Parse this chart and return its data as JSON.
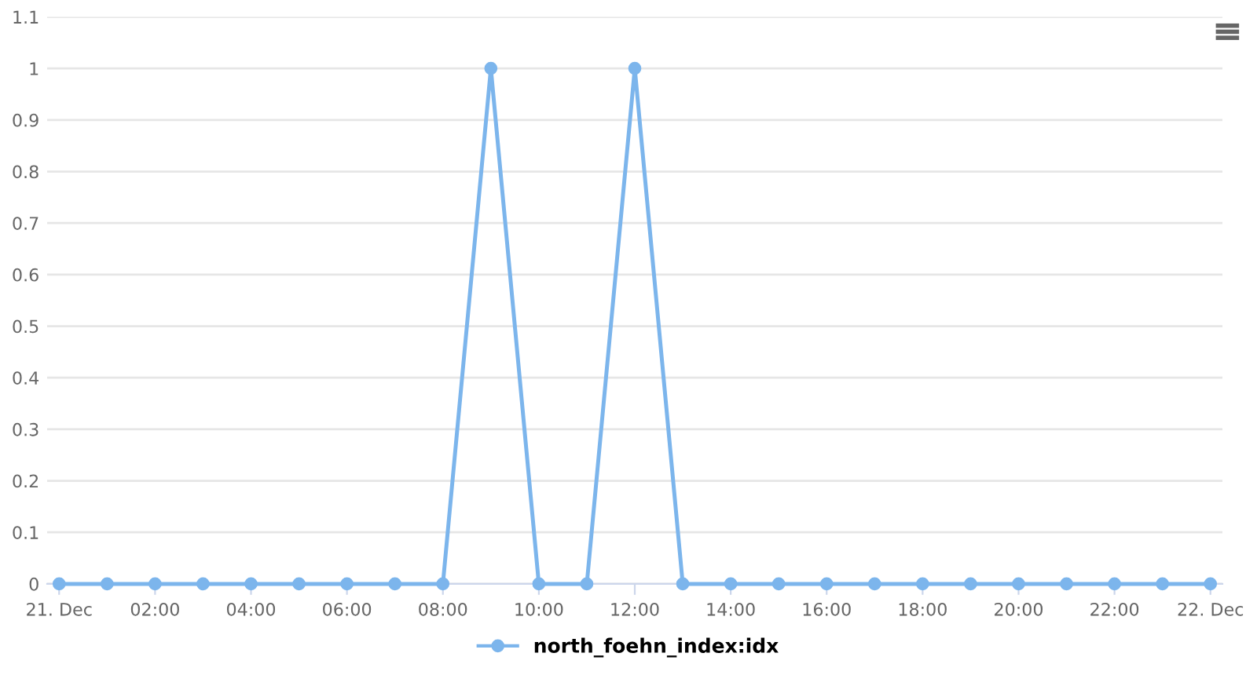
{
  "chart_data": {
    "type": "line",
    "x": [
      0,
      1,
      2,
      3,
      4,
      5,
      6,
      7,
      8,
      9,
      10,
      11,
      12,
      13,
      14,
      15,
      16,
      17,
      18,
      19,
      20,
      21,
      22,
      23,
      24
    ],
    "series": [
      {
        "name": "north_foehn_index:idx",
        "color": "#7cb5ec",
        "values": [
          0,
          0,
          0,
          0,
          0,
          0,
          0,
          0,
          0,
          1,
          0,
          0,
          1,
          0,
          0,
          0,
          0,
          0,
          0,
          0,
          0,
          0,
          0,
          0,
          0
        ]
      }
    ],
    "xlim": [
      -0.25,
      24.25
    ],
    "xticks": [
      {
        "value": 0,
        "label": "21. Dec"
      },
      {
        "value": 2,
        "label": "02:00"
      },
      {
        "value": 4,
        "label": "04:00"
      },
      {
        "value": 6,
        "label": "06:00"
      },
      {
        "value": 8,
        "label": "08:00"
      },
      {
        "value": 10,
        "label": "10:00"
      },
      {
        "value": 12,
        "label": "12:00"
      },
      {
        "value": 14,
        "label": "14:00"
      },
      {
        "value": 16,
        "label": "16:00"
      },
      {
        "value": 18,
        "label": "18:00"
      },
      {
        "value": 20,
        "label": "20:00"
      },
      {
        "value": 22,
        "label": "22:00"
      },
      {
        "value": 24,
        "label": "22. Dec"
      }
    ],
    "ylim": [
      0,
      1.1
    ],
    "yticks": [
      0,
      0.1,
      0.2,
      0.3,
      0.4,
      0.5,
      0.6,
      0.7,
      0.8,
      0.9,
      1,
      1.1
    ],
    "grid": "y",
    "legend": "bottom",
    "marker": "circle",
    "line_style": "solid"
  }
}
